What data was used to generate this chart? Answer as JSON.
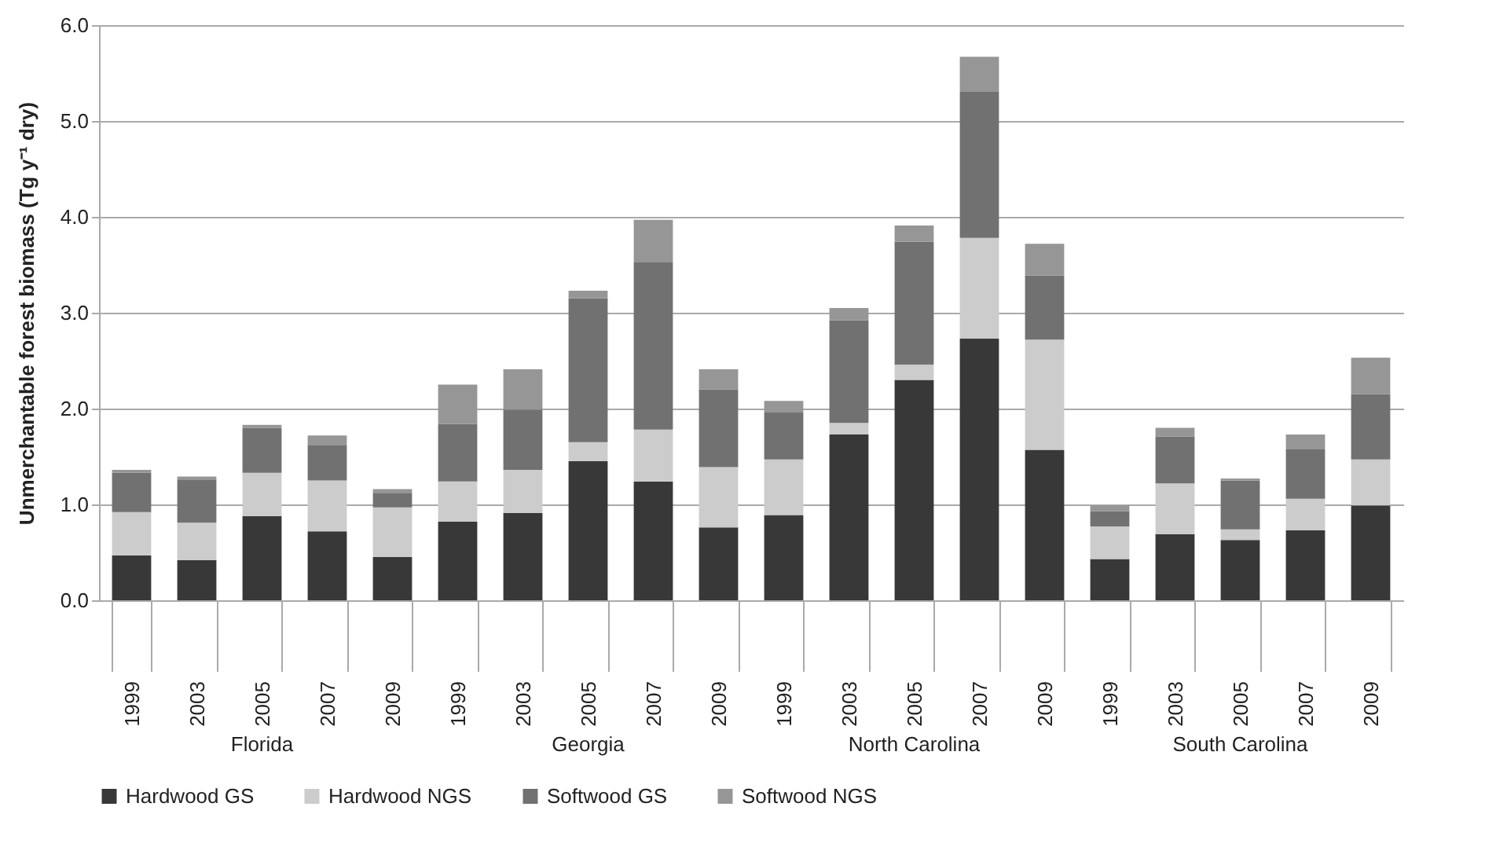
{
  "chart_data": {
    "type": "bar",
    "stacked": true,
    "ylabel": "Unmerchantable forest biomass (Tg y⁻¹ dry)",
    "categories": [
      "1999",
      "2003",
      "2005",
      "2007",
      "2009",
      "1999",
      "2003",
      "2005",
      "2007",
      "2009",
      "1999",
      "2003",
      "2005",
      "2007",
      "2009",
      "1999",
      "2003",
      "2005",
      "2007",
      "2009"
    ],
    "annotations": [
      "Florida",
      "Georgia",
      "North Carolina",
      "South Carolina"
    ],
    "series": [
      {
        "name": "Hardwood GS",
        "color": "#383838",
        "values": [
          0.47,
          0.42,
          0.88,
          0.72,
          0.45,
          0.82,
          0.91,
          1.45,
          1.24,
          0.76,
          0.89,
          1.73,
          2.3,
          2.73,
          1.57,
          0.43,
          0.69,
          0.63,
          0.73,
          0.99
        ]
      },
      {
        "name": "Hardwood NGS",
        "color": "#cccccc",
        "values": [
          0.45,
          0.39,
          0.45,
          0.53,
          0.52,
          0.42,
          0.45,
          0.2,
          0.54,
          0.63,
          0.58,
          0.12,
          0.16,
          1.05,
          1.15,
          0.34,
          0.53,
          0.11,
          0.33,
          0.48
        ]
      },
      {
        "name": "Softwood GS",
        "color": "#717171",
        "values": [
          0.41,
          0.45,
          0.47,
          0.37,
          0.15,
          0.6,
          0.63,
          1.5,
          1.75,
          0.81,
          0.49,
          1.07,
          1.28,
          1.53,
          0.67,
          0.16,
          0.49,
          0.51,
          0.52,
          0.68
        ]
      },
      {
        "name": "Softwood NGS",
        "color": "#969696",
        "values": [
          0.03,
          0.03,
          0.03,
          0.1,
          0.04,
          0.41,
          0.42,
          0.08,
          0.44,
          0.21,
          0.12,
          0.13,
          0.17,
          0.36,
          0.33,
          0.06,
          0.09,
          0.02,
          0.15,
          0.38
        ]
      }
    ],
    "ylim": [
      0,
      6
    ],
    "yticks": [
      {
        "value": 0,
        "label": "0.0"
      },
      {
        "value": 1,
        "label": "1.0"
      },
      {
        "value": 2,
        "label": "2.0"
      },
      {
        "value": 3,
        "label": "3.0"
      },
      {
        "value": 4,
        "label": "4.0"
      },
      {
        "value": 5,
        "label": "5.0"
      },
      {
        "value": 6,
        "label": "6.0"
      }
    ],
    "grid": "y",
    "legend": "bottom"
  }
}
